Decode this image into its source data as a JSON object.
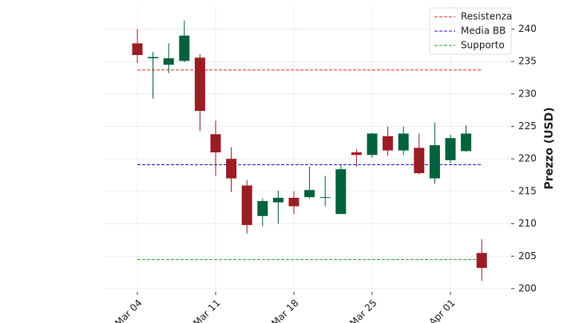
{
  "chart_data": {
    "type": "candlestick",
    "categories": [
      "Mar 04",
      null,
      null,
      null,
      null,
      "Mar 11",
      null,
      null,
      null,
      null,
      "Mar 18",
      null,
      null,
      null,
      null,
      "Mar 25",
      null,
      null,
      null,
      null,
      "Apr 01",
      null,
      null
    ],
    "open": [
      237.8,
      235.5,
      234.5,
      235.1,
      235.6,
      223.8,
      220.0,
      215.9,
      211.2,
      213.3,
      214.0,
      214.1,
      214.0,
      211.5,
      221.0,
      220.6,
      223.5,
      221.3,
      221.7,
      217.0,
      219.8,
      221.2,
      205.5
    ],
    "high": [
      240.0,
      236.5,
      237.8,
      241.3,
      236.1,
      225.9,
      221.8,
      216.7,
      213.9,
      215.1,
      215.0,
      218.8,
      217.4,
      219.0,
      221.5,
      224.0,
      225.0,
      225.0,
      223.9,
      225.6,
      223.7,
      225.2,
      207.6
    ],
    "low": [
      234.8,
      229.3,
      233.2,
      234.9,
      224.3,
      217.4,
      214.9,
      208.5,
      209.6,
      210.0,
      211.5,
      213.9,
      212.7,
      211.5,
      218.8,
      220.2,
      220.5,
      220.6,
      217.6,
      216.2,
      219.4,
      221.1,
      201.2
    ],
    "close": [
      236.0,
      235.7,
      235.5,
      239.0,
      227.4,
      221.0,
      217.0,
      209.8,
      213.5,
      214.0,
      212.7,
      215.2,
      214.1,
      218.4,
      220.6,
      223.9,
      221.3,
      223.9,
      217.8,
      222.1,
      223.2,
      223.9,
      203.2
    ],
    "up_color": "#00623c",
    "down_color": "#9b1c24",
    "lines": [
      {
        "name": "Resistenza",
        "color": "#e03030",
        "value": 233.7
      },
      {
        "name": "Media BB",
        "color": "#2020d0",
        "value": 219.1
      },
      {
        "name": "Supporto",
        "color": "#20a020",
        "value": 204.5
      }
    ],
    "y_label": "Prezzo (USD)",
    "ylim": [
      199.5,
      243.5
    ],
    "yticks": [
      200,
      205,
      210,
      215,
      220,
      225,
      230,
      235,
      240
    ],
    "grid": true,
    "legend": "upper right"
  }
}
